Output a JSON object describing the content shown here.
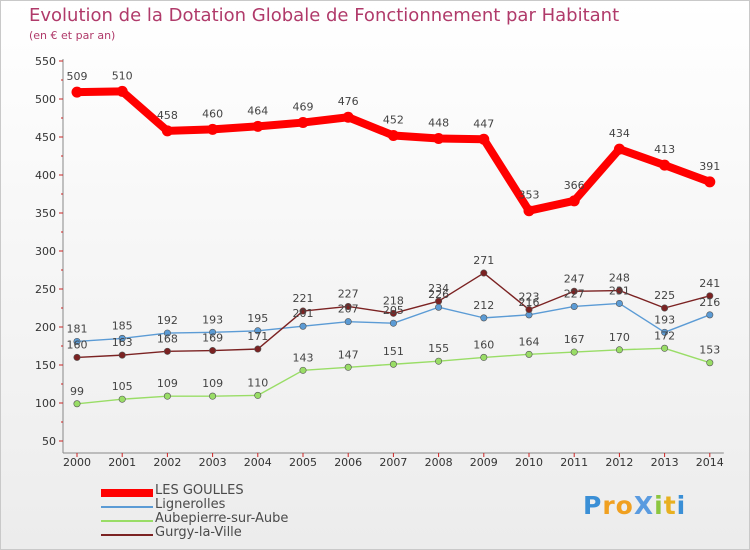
{
  "chart_data": {
    "type": "line",
    "title": "Evolution de la Dotation Globale de Fonctionnement par Habitant",
    "subtitle": "(en € et par an)",
    "xlabel": "",
    "ylabel": "",
    "x": [
      "2000",
      "2001",
      "2002",
      "2003",
      "2004",
      "2005",
      "2006",
      "2007",
      "2008",
      "2009",
      "2010",
      "2011",
      "2012",
      "2013",
      "2014"
    ],
    "ylim": [
      50,
      550
    ],
    "yticks": [
      50,
      100,
      150,
      200,
      250,
      300,
      350,
      400,
      450,
      500,
      550
    ],
    "grid": false,
    "legend_position": "bottom-left",
    "series": [
      {
        "name": "LES GOULLES",
        "color": "#ff0000",
        "values": [
          509,
          510,
          458,
          460,
          464,
          469,
          476,
          452,
          448,
          447,
          353,
          366,
          434,
          413,
          391
        ]
      },
      {
        "name": "Lignerolles",
        "color": "#5b9bd5",
        "values": [
          181,
          185,
          192,
          193,
          195,
          201,
          207,
          205,
          226,
          212,
          216,
          227,
          231,
          193,
          216
        ]
      },
      {
        "name": "Aubepierre-sur-Aube",
        "color": "#99dd66",
        "values": [
          99,
          105,
          109,
          109,
          110,
          143,
          147,
          151,
          155,
          160,
          164,
          167,
          170,
          172,
          153
        ]
      },
      {
        "name": "Gurgy-la-Ville",
        "color": "#7b2222",
        "values": [
          160,
          163,
          168,
          169,
          171,
          221,
          227,
          218,
          234,
          271,
          223,
          247,
          248,
          225,
          241
        ]
      }
    ]
  },
  "logo": {
    "text": "ProXiti"
  }
}
